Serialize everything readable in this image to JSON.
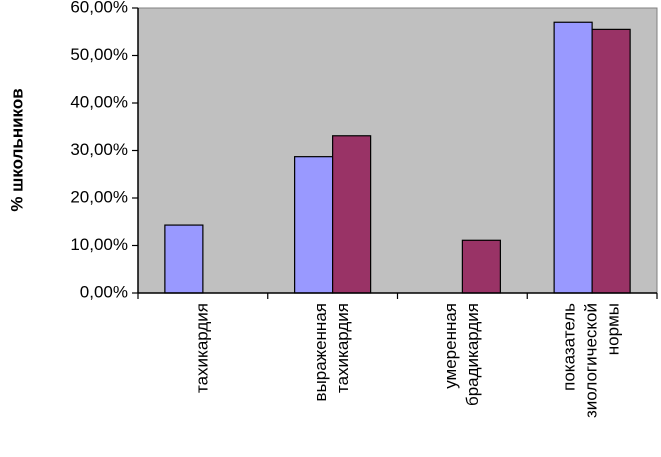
{
  "chart_data": {
    "type": "bar",
    "title": "",
    "xlabel": "",
    "ylabel": "% школьников",
    "ylim": [
      0,
      60
    ],
    "y_ticks": [
      "0,00%",
      "10,00%",
      "20,00%",
      "30,00%",
      "40,00%",
      "50,00%",
      "60,00%"
    ],
    "y_tick_values": [
      0,
      10,
      20,
      30,
      40,
      50,
      60
    ],
    "grid": false,
    "legend": "none",
    "plot_background": "#c0c0c0",
    "categories": [
      [
        "тахикардия"
      ],
      [
        "выраженная",
        "тахикардия"
      ],
      [
        "умеренная",
        "брадикардия"
      ],
      [
        "показатель",
        "зиологической",
        "нормы"
      ]
    ],
    "series": [
      {
        "color": "#9999ff",
        "values": [
          14.3,
          28.7,
          null,
          57.0
        ]
      },
      {
        "color": "#993366",
        "values": [
          null,
          33.1,
          11.1,
          55.5
        ]
      }
    ]
  }
}
